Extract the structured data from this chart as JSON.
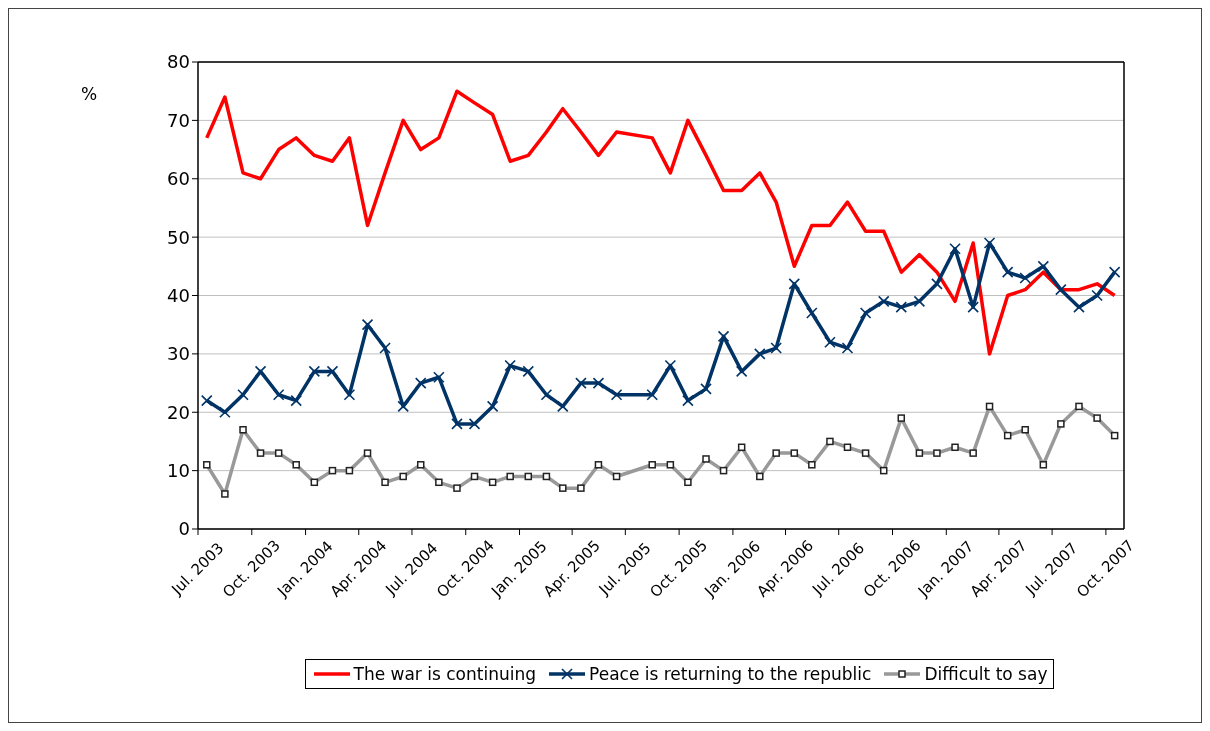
{
  "chart_data": {
    "type": "line",
    "ylabel": "%",
    "x": [
      "2003-07-16",
      "2003-08-16",
      "2003-09-16",
      "2003-10-16",
      "2003-11-16",
      "2003-12-16",
      "2004-01-16",
      "2004-02-16",
      "2004-03-16",
      "2004-04-16",
      "2004-05-16",
      "2004-06-16",
      "2004-07-16",
      "2004-08-16",
      "2004-09-16",
      "2004-10-16",
      "2004-11-16",
      "2004-12-16",
      "2005-01-16",
      "2005-02-16",
      "2005-03-16",
      "2005-04-16",
      "2005-05-16",
      "2005-06-16",
      "2005-07-16",
      "2005-08-16",
      "2005-09-16",
      "2005-10-16",
      "2005-11-16",
      "2005-12-16",
      "2006-01-16",
      "2006-02-16",
      "2006-03-16",
      "2006-04-16",
      "2006-05-16",
      "2006-06-16",
      "2006-07-16",
      "2006-08-16",
      "2006-09-16",
      "2006-10-16",
      "2006-11-16",
      "2006-12-16",
      "2007-01-16",
      "2007-02-16",
      "2007-03-16",
      "2007-04-16",
      "2007-05-16",
      "2007-06-16",
      "2007-07-16",
      "2007-08-16",
      "2007-09-16",
      "2007-10-16"
    ],
    "series": [
      {
        "name": "The war is continuing",
        "color": "#ff0000",
        "marker": "none",
        "values": [
          67,
          74,
          61,
          60,
          65,
          67,
          64,
          63,
          67,
          52,
          61,
          70,
          65,
          67,
          75,
          73,
          71,
          63,
          64,
          68,
          72,
          68,
          64,
          68,
          null,
          67,
          61,
          70,
          64,
          58,
          58,
          61,
          56,
          45,
          52,
          52,
          56,
          51,
          51,
          44,
          47,
          44,
          39,
          49,
          30,
          40,
          41,
          44,
          41,
          41,
          42,
          40
        ]
      },
      {
        "name": "Peace is returning to the republic",
        "color": "#003366",
        "marker": "cross",
        "values": [
          22,
          20,
          23,
          27,
          23,
          22,
          27,
          27,
          23,
          35,
          31,
          21,
          25,
          26,
          18,
          18,
          21,
          28,
          27,
          23,
          21,
          25,
          25,
          23,
          null,
          23,
          28,
          22,
          24,
          33,
          27,
          30,
          31,
          42,
          37,
          32,
          31,
          37,
          39,
          38,
          39,
          42,
          48,
          38,
          49,
          44,
          43,
          45,
          41,
          38,
          40,
          44
        ]
      },
      {
        "name": "Difficult to say",
        "color": "#999999",
        "marker": "square",
        "values": [
          11,
          6,
          17,
          13,
          13,
          11,
          8,
          10,
          10,
          13,
          8,
          9,
          11,
          8,
          7,
          9,
          8,
          9,
          9,
          9,
          7,
          7,
          11,
          9,
          null,
          11,
          11,
          8,
          12,
          10,
          14,
          9,
          13,
          13,
          11,
          15,
          14,
          13,
          10,
          19,
          13,
          13,
          14,
          13,
          21,
          16,
          17,
          11,
          18,
          21,
          19,
          16
        ]
      }
    ],
    "xlim": [
      "2003-07",
      "2007-11"
    ],
    "xticks": [
      {
        "value": "2003-07",
        "label": "Jul. 2003"
      },
      {
        "value": "2003-10",
        "label": "Oct. 2003"
      },
      {
        "value": "2004-01",
        "label": "Jan. 2004"
      },
      {
        "value": "2004-04",
        "label": "Apr. 2004"
      },
      {
        "value": "2004-07",
        "label": "Jul. 2004"
      },
      {
        "value": "2004-10",
        "label": "Oct. 2004"
      },
      {
        "value": "2005-01",
        "label": "Jan. 2005"
      },
      {
        "value": "2005-04",
        "label": "Apr. 2005"
      },
      {
        "value": "2005-07",
        "label": "Jul. 2005"
      },
      {
        "value": "2005-10",
        "label": "Oct. 2005"
      },
      {
        "value": "2006-01",
        "label": "Jan. 2006"
      },
      {
        "value": "2006-04",
        "label": "Apr. 2006"
      },
      {
        "value": "2006-07",
        "label": "Jul. 2006"
      },
      {
        "value": "2006-10",
        "label": "Oct. 2006"
      },
      {
        "value": "2007-01",
        "label": "Jan. 2007"
      },
      {
        "value": "2007-04",
        "label": "Apr. 2007"
      },
      {
        "value": "2007-07",
        "label": "Jul. 2007"
      },
      {
        "value": "2007-10",
        "label": "Oct. 2007"
      }
    ],
    "ylim": [
      0,
      80
    ],
    "yticks": [
      0,
      10,
      20,
      30,
      40,
      50,
      60,
      70,
      80
    ],
    "grid": "y",
    "legend": "bottom",
    "line_style": "solid"
  }
}
